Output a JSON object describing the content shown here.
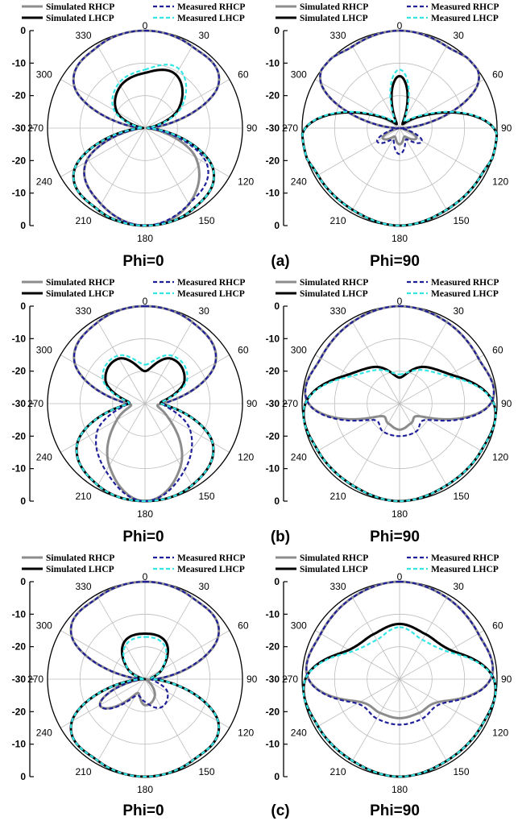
{
  "series_styles": [
    {
      "color": "#8c8c8c",
      "width": 3.0,
      "dash": ""
    },
    {
      "color": "#000000",
      "width": 3.0,
      "dash": ""
    },
    {
      "color": "#1f1f99",
      "width": 2.2,
      "dash": "5,3"
    },
    {
      "color": "#33e6e6",
      "width": 2.2,
      "dash": "5,3"
    }
  ],
  "subfigure_labels": [
    "(a)",
    "(b)",
    "(c)"
  ],
  "chart_data": [
    {
      "type": "polar",
      "subfigure": "a",
      "title": "Phi=0",
      "radial_ticks_top": [
        "0",
        "-10",
        "-20",
        "-30"
      ],
      "radial_ticks_bottom": [
        "-20",
        "-10",
        "0"
      ],
      "angle_labels": [
        "0",
        "30",
        "60",
        "90",
        "120",
        "150",
        "180",
        "210",
        "240",
        "270",
        "300",
        "330"
      ],
      "rlim": [
        -30,
        0
      ],
      "theta": [
        0,
        30,
        60,
        90,
        120,
        150,
        180,
        210,
        240,
        270,
        300,
        330
      ],
      "series": [
        {
          "name": "Simulated RHCP",
          "values": [
            0,
            -1,
            -4,
            -29,
            -12,
            -3,
            0,
            -3,
            -9,
            -29,
            -5,
            -1
          ]
        },
        {
          "name": "Simulated LHCP",
          "values": [
            -13,
            -11,
            -18,
            -29,
            -6,
            -1,
            0,
            -1,
            -5,
            -29,
            -20,
            -15
          ]
        },
        {
          "name": "Measured RHCP",
          "values": [
            0,
            -1,
            -4,
            -29,
            -8,
            -3,
            0,
            -3,
            -9,
            -29,
            -5,
            -1
          ]
        },
        {
          "name": "Measured LHCP",
          "values": [
            -12,
            -9,
            -17,
            -29,
            -6,
            -1,
            0,
            -1,
            -5,
            -29,
            -19,
            -14
          ]
        }
      ]
    },
    {
      "type": "polar",
      "subfigure": "a",
      "title": "Phi=90",
      "radial_ticks_top": [
        "0",
        "-10",
        "-20",
        "-30"
      ],
      "radial_ticks_bottom": [
        "-20",
        "-10",
        "0"
      ],
      "angle_labels": [
        "0",
        "30",
        "60",
        "90",
        "120",
        "150",
        "180",
        "210",
        "240",
        "270",
        "300",
        "330"
      ],
      "rlim": [
        -30,
        0
      ],
      "theta": [
        0,
        30,
        60,
        90,
        120,
        150,
        180,
        210,
        240,
        270,
        300,
        330
      ],
      "series": [
        {
          "name": "Simulated RHCP",
          "values": [
            0,
            -1,
            -2,
            -29,
            -24,
            -27,
            -25,
            -27,
            -24,
            -29,
            -2,
            -1
          ]
        },
        {
          "name": "Simulated LHCP",
          "values": [
            -14,
            -28,
            -23,
            -1,
            -1,
            -1,
            0,
            -1,
            -1,
            -1,
            -23,
            -28
          ]
        },
        {
          "name": "Measured RHCP",
          "values": [
            0,
            -1,
            -2,
            -29,
            -22,
            -26,
            -22,
            -26,
            -22,
            -29,
            -2,
            -1
          ]
        },
        {
          "name": "Measured LHCP",
          "values": [
            -12,
            -27,
            -22,
            -1,
            -1,
            -1,
            0,
            -1,
            -1,
            -1,
            -22,
            -27
          ]
        }
      ]
    },
    {
      "type": "polar",
      "subfigure": "b",
      "title": "Phi=0",
      "radial_ticks_top": [
        "0",
        "-10",
        "-20",
        "-30"
      ],
      "radial_ticks_bottom": [
        "-20",
        "-10",
        "0"
      ],
      "angle_labels": [
        "0",
        "30",
        "60",
        "90",
        "120",
        "150",
        "180",
        "210",
        "240",
        "270",
        "300",
        "330"
      ],
      "rlim": [
        -30,
        0
      ],
      "theta": [
        0,
        30,
        60,
        90,
        120,
        150,
        180,
        210,
        240,
        270,
        300,
        330
      ],
      "series": [
        {
          "name": "Simulated RHCP",
          "values": [
            0,
            -1,
            -5,
            -25,
            -22,
            -8,
            0,
            -8,
            -20,
            -25,
            -5,
            -1
          ]
        },
        {
          "name": "Simulated LHCP",
          "values": [
            -20,
            -14,
            -16,
            -25,
            -6,
            -1,
            0,
            -1,
            -6,
            -25,
            -16,
            -14
          ]
        },
        {
          "name": "Measured RHCP",
          "values": [
            0,
            -1,
            -5,
            -24,
            -14,
            -6,
            0,
            -6,
            -13,
            -24,
            -5,
            -1
          ]
        },
        {
          "name": "Measured LHCP",
          "values": [
            -18,
            -13,
            -15,
            -25,
            -6,
            -1,
            0,
            -1,
            -6,
            -25,
            -15,
            -13
          ]
        }
      ]
    },
    {
      "type": "polar",
      "subfigure": "b",
      "title": "Phi=90",
      "radial_ticks_top": [
        "0",
        "-10",
        "-20",
        "-30"
      ],
      "radial_ticks_bottom": [
        "-20",
        "-10",
        "0"
      ],
      "angle_labels": [
        "0",
        "30",
        "60",
        "90",
        "120",
        "150",
        "180",
        "210",
        "240",
        "270",
        "300",
        "330"
      ],
      "rlim": [
        -30,
        0
      ],
      "theta": [
        0,
        30,
        60,
        90,
        120,
        150,
        180,
        210,
        240,
        270,
        300,
        330
      ],
      "series": [
        {
          "name": "Simulated RHCP",
          "values": [
            0,
            -1,
            -2,
            -2,
            -22,
            -23,
            -22,
            -23,
            -22,
            -2,
            -2,
            -1
          ]
        },
        {
          "name": "Simulated LHCP",
          "values": [
            -22,
            -17,
            -12,
            -1,
            -1,
            -1,
            0,
            -1,
            -1,
            -1,
            -12,
            -17
          ]
        },
        {
          "name": "Measured RHCP",
          "values": [
            0,
            -1,
            -2,
            -2,
            -20,
            -20,
            -20,
            -20,
            -20,
            -2,
            -2,
            -1
          ]
        },
        {
          "name": "Measured LHCP",
          "values": [
            -21,
            -18,
            -13,
            -1,
            -1,
            -1,
            0,
            -1,
            -1,
            -1,
            -13,
            -18
          ]
        }
      ]
    },
    {
      "type": "polar",
      "subfigure": "c",
      "title": "Phi=0",
      "radial_ticks_top": [
        "0",
        "-10",
        "-20",
        "-30"
      ],
      "radial_ticks_bottom": [
        "-20",
        "-10",
        "0"
      ],
      "angle_labels": [
        "0",
        "30",
        "60",
        "90",
        "120",
        "150",
        "180",
        "210",
        "240",
        "270",
        "300",
        "330"
      ],
      "rlim": [
        -30,
        0
      ],
      "theta": [
        0,
        30,
        60,
        90,
        120,
        150,
        180,
        210,
        240,
        270,
        300,
        330
      ],
      "series": [
        {
          "name": "Simulated RHCP",
          "values": [
            0,
            -1,
            -4,
            -27,
            -29,
            -24,
            -22,
            -25,
            -14,
            -29,
            -4,
            -1
          ]
        },
        {
          "name": "Simulated LHCP",
          "values": [
            -16,
            -17,
            -24,
            -27,
            -4,
            -1,
            0,
            -1,
            -4,
            -29,
            -24,
            -17
          ]
        },
        {
          "name": "Measured RHCP",
          "values": [
            0,
            -1,
            -4,
            -27,
            -22,
            -20,
            -23,
            -24,
            -14,
            -29,
            -4,
            -1
          ]
        },
        {
          "name": "Measured LHCP",
          "values": [
            -17,
            -18,
            -24,
            -27,
            -4,
            -1,
            0,
            -1,
            -4,
            -29,
            -24,
            -18
          ]
        }
      ]
    },
    {
      "type": "polar",
      "subfigure": "c",
      "title": "Phi=90",
      "radial_ticks_top": [
        "0",
        "-10",
        "-20",
        "-30"
      ],
      "radial_ticks_bottom": [
        "-20",
        "-10",
        "0"
      ],
      "angle_labels": [
        "0",
        "30",
        "60",
        "90",
        "120",
        "150",
        "180",
        "210",
        "240",
        "270",
        "300",
        "330"
      ],
      "rlim": [
        -30,
        0
      ],
      "theta": [
        0,
        30,
        60,
        90,
        120,
        150,
        180,
        210,
        240,
        270,
        300,
        330
      ],
      "series": [
        {
          "name": "Simulated RHCP",
          "values": [
            0,
            -1,
            -2,
            -2,
            -16,
            -18,
            -18,
            -18,
            -16,
            -2,
            -2,
            -1
          ]
        },
        {
          "name": "Simulated LHCP",
          "values": [
            -13,
            -14,
            -12,
            -1,
            -1,
            -1,
            0,
            -1,
            -1,
            -1,
            -12,
            -14
          ]
        },
        {
          "name": "Measured RHCP",
          "values": [
            0,
            -1,
            -2,
            -2,
            -15,
            -16,
            -16,
            -16,
            -15,
            -2,
            -2,
            -1
          ]
        },
        {
          "name": "Measured LHCP",
          "values": [
            -14,
            -16,
            -13,
            -1,
            -1,
            -1,
            0,
            -1,
            -1,
            -1,
            -13,
            -16
          ]
        }
      ]
    }
  ]
}
